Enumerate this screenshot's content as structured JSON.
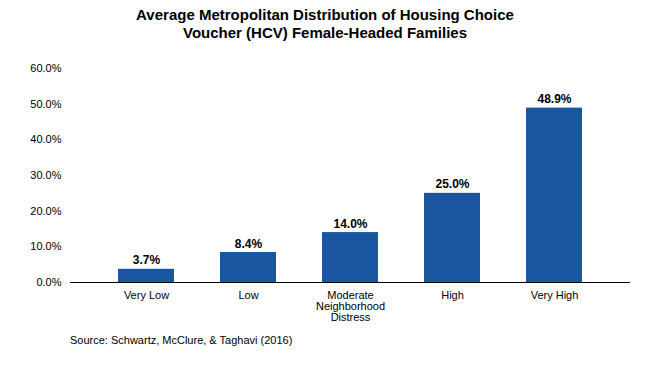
{
  "chart_data": {
    "type": "bar",
    "title": "Average Metropolitan Distribution of Housing Choice\nVoucher (HCV) Female-Headed Families",
    "categories": [
      "Very Low",
      "Low",
      "Moderate\nNeighborhood\nDistress",
      "High",
      "Very High"
    ],
    "values": [
      3.7,
      8.4,
      14.0,
      25.0,
      48.9
    ],
    "value_labels": [
      "3.7%",
      "8.4%",
      "14.0%",
      "25.0%",
      "48.9%"
    ],
    "data_labels": true,
    "color": "#1a56a0",
    "ylim": [
      0,
      60
    ],
    "yticks": [
      {
        "value": 0,
        "label": "0.0%"
      },
      {
        "value": 10,
        "label": "10.0%"
      },
      {
        "value": 20,
        "label": "20.0%"
      },
      {
        "value": 30,
        "label": "30.0%"
      },
      {
        "value": 40,
        "label": "40.0%"
      },
      {
        "value": 50,
        "label": "50.0%"
      },
      {
        "value": 60,
        "label": "60.0%"
      }
    ],
    "grid": false,
    "source": "Source: Schwartz, McClure, & Taghavi (2016)"
  }
}
